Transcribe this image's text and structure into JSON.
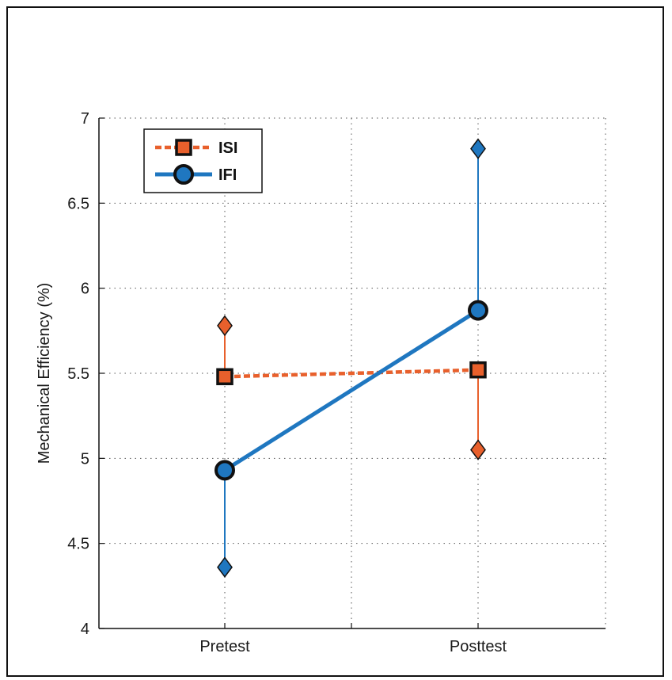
{
  "chart_data": {
    "type": "line",
    "categories": [
      "Pretest",
      "Posttest"
    ],
    "ylabel": "Mechanical Efficiency (%)",
    "xlabel": "",
    "ylim": [
      4,
      7
    ],
    "yticks": [
      "4",
      "4.5",
      "5",
      "5.5",
      "6",
      "6.5",
      "7"
    ],
    "grid": "dotted",
    "legend_position": "top-left",
    "series": [
      {
        "name": "ISI",
        "color": "#e8602c",
        "line_style": "dashed",
        "marker": "square",
        "values": [
          5.48,
          5.52
        ],
        "error_ends": [
          5.78,
          5.05
        ]
      },
      {
        "name": "IFI",
        "color": "#1f77c0",
        "line_style": "solid",
        "marker": "circle",
        "values": [
          4.93,
          5.87
        ],
        "error_ends": [
          4.36,
          6.82
        ]
      }
    ]
  }
}
